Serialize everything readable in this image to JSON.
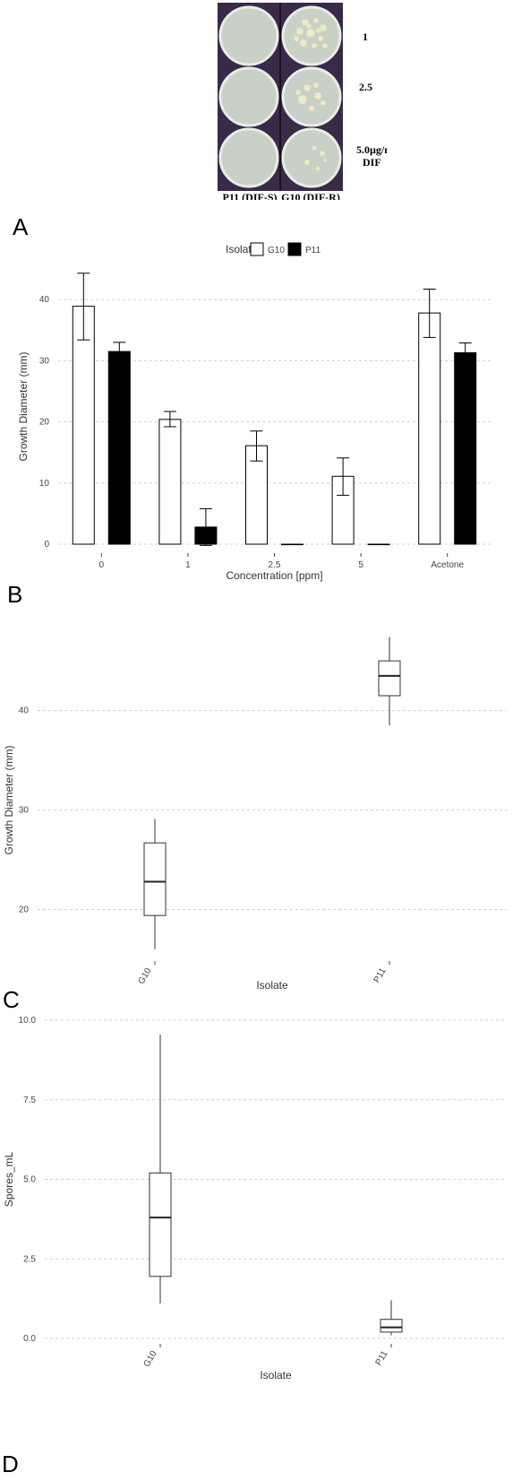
{
  "panel_letters": {
    "a": "A",
    "b": "B",
    "c": "C",
    "d": "D"
  },
  "photo": {
    "row_labels": [
      "1",
      "2.5",
      "5.0µg/ml",
      "DIF"
    ],
    "column_labels": [
      "P11 (DIF-S)",
      "G10 (DIF-R)"
    ],
    "colors": {
      "background": "#3a2a4a",
      "plate": "#c9d0c6",
      "colony": "#eceacc"
    }
  },
  "chart_data": [
    {
      "panel": "B",
      "type": "bar",
      "legend": {
        "title": "Isolate",
        "placement": "top"
      },
      "xlabel": "Concentration [ppm]",
      "ylabel": "Growth Diameter (mm)",
      "ylim": [
        0,
        45
      ],
      "yticks": [
        0,
        10,
        20,
        30,
        40
      ],
      "grid": true,
      "categories": [
        "0",
        "1",
        "2.5",
        "5",
        "Acetone"
      ],
      "series": [
        {
          "name": "G10",
          "fill": "#ffffff",
          "values": [
            38.9,
            20.4,
            16.1,
            11.1,
            37.8
          ],
          "err_low": [
            33.4,
            19.2,
            13.6,
            8.0,
            33.8
          ],
          "err_high": [
            44.3,
            21.7,
            18.5,
            14.1,
            41.7
          ]
        },
        {
          "name": "P11",
          "fill": "#000000",
          "values": [
            31.5,
            2.8,
            0.0,
            0.0,
            31.3
          ],
          "err_low": [
            30.0,
            -0.2,
            0.0,
            0.0,
            29.7
          ],
          "err_high": [
            33.0,
            5.8,
            0.0,
            0.0,
            32.9
          ]
        }
      ]
    },
    {
      "panel": "C",
      "type": "box",
      "xlabel": "Isolate",
      "ylabel": "Growth Diameter (mm)",
      "ylim": [
        15,
        47
      ],
      "yticks": [
        20,
        30,
        40
      ],
      "grid": true,
      "categories": [
        "G10",
        "P11"
      ],
      "boxes": [
        {
          "min": 16.0,
          "q1": 19.4,
          "median": 22.8,
          "q3": 26.7,
          "max": 29.1
        },
        {
          "min": 38.5,
          "q1": 41.5,
          "median": 43.5,
          "q3": 45.0,
          "max": 47.4
        }
      ]
    },
    {
      "panel": "D",
      "type": "box",
      "xlabel": "Isolate",
      "ylabel": "Spores_mL",
      "ylim": [
        0,
        10
      ],
      "yticks": [
        0.0,
        2.5,
        5.0,
        7.5,
        10.0
      ],
      "ytick_labels": [
        "0.0",
        "2.5",
        "5.0",
        "7.5",
        "10.0"
      ],
      "grid": true,
      "categories": [
        "G10",
        "P11"
      ],
      "boxes": [
        {
          "min": 1.1,
          "q1": 1.95,
          "median": 3.8,
          "q3": 5.2,
          "max": 9.55
        },
        {
          "min": 0.1,
          "q1": 0.2,
          "median": 0.35,
          "q3": 0.6,
          "max": 1.2
        }
      ]
    }
  ]
}
